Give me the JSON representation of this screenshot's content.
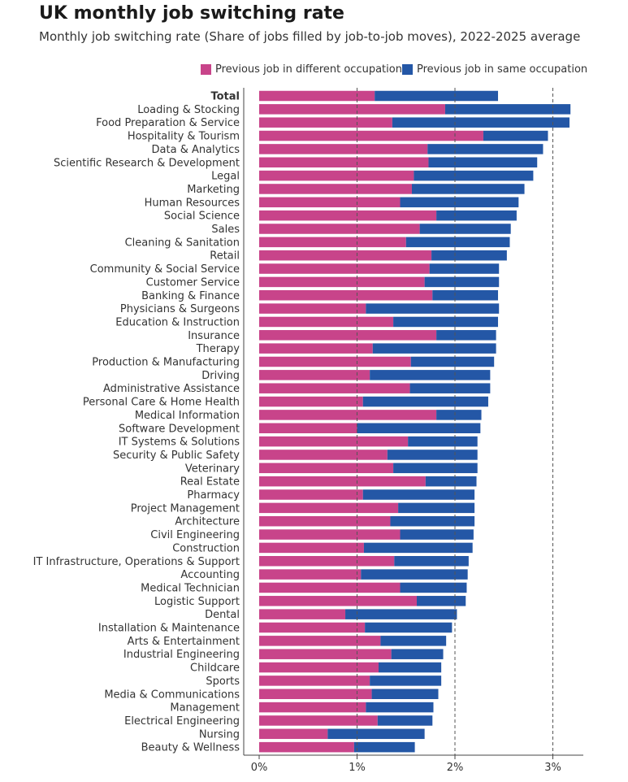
{
  "chart_data": {
    "type": "bar",
    "orientation": "horizontal",
    "stacked": true,
    "title": "UK monthly job switching rate",
    "subtitle": "Monthly job switching rate (Share of jobs filled by job-to-job moves), 2022-2025 average",
    "xlabel": "",
    "ylabel": "",
    "xlim": [
      0,
      3.3
    ],
    "x_ticks": [
      0,
      1,
      2,
      3
    ],
    "x_tick_labels": [
      "0%",
      "1%",
      "2%",
      "3%"
    ],
    "gridlines": "dashed vertical at 1%, 2%, 3%",
    "legend_position": "top-right",
    "colors": {
      "different": "#c8448a",
      "same": "#2457a6"
    },
    "categories": [
      "Total",
      "Loading & Stocking",
      "Food Preparation & Service",
      "Hospitality & Tourism",
      "Data & Analytics",
      "Scientific Research & Development",
      "Legal",
      "Marketing",
      "Human Resources",
      "Social Science",
      "Sales",
      "Cleaning & Sanitation",
      "Retail",
      "Community & Social Service",
      "Customer Service",
      "Banking & Finance",
      "Physicians & Surgeons",
      "Education & Instruction",
      "Insurance",
      "Therapy",
      "Production & Manufacturing",
      "Driving",
      "Administrative Assistance",
      "Personal Care & Home Health",
      "Medical Information",
      "Software Development",
      "IT Systems & Solutions",
      "Security & Public Safety",
      "Veterinary",
      "Real Estate",
      "Pharmacy",
      "Project Management",
      "Architecture",
      "Civil Engineering",
      "Construction",
      "IT Infrastructure, Operations & Support",
      "Accounting",
      "Medical Technician",
      "Logistic Support",
      "Dental",
      "Installation & Maintenance",
      "Arts & Entertainment",
      "Industrial Engineering",
      "Childcare",
      "Sports",
      "Media & Communications",
      "Management",
      "Electrical Engineering",
      "Nursing",
      "Beauty & Wellness"
    ],
    "series": [
      {
        "name": "Previous job in different occupation",
        "values": [
          1.18,
          1.9,
          1.36,
          2.29,
          1.72,
          1.73,
          1.58,
          1.56,
          1.44,
          1.81,
          1.64,
          1.5,
          1.76,
          1.74,
          1.69,
          1.77,
          1.09,
          1.37,
          1.81,
          1.16,
          1.55,
          1.13,
          1.54,
          1.06,
          1.81,
          1.0,
          1.52,
          1.31,
          1.37,
          1.7,
          1.06,
          1.42,
          1.34,
          1.44,
          1.07,
          1.38,
          1.04,
          1.44,
          1.61,
          0.88,
          1.08,
          1.24,
          1.35,
          1.22,
          1.13,
          1.15,
          1.09,
          1.21,
          0.7,
          0.97
        ]
      },
      {
        "name": "Previous job in same occupation",
        "values": [
          1.26,
          1.28,
          1.81,
          0.66,
          1.18,
          1.11,
          1.22,
          1.15,
          1.21,
          0.82,
          0.93,
          1.06,
          0.77,
          0.71,
          0.76,
          0.67,
          1.36,
          1.07,
          0.61,
          1.26,
          0.85,
          1.23,
          0.82,
          1.28,
          0.46,
          1.26,
          0.71,
          0.92,
          0.86,
          0.52,
          1.14,
          0.78,
          0.86,
          0.75,
          1.11,
          0.76,
          1.09,
          0.68,
          0.5,
          1.14,
          0.89,
          0.67,
          0.53,
          0.64,
          0.73,
          0.68,
          0.69,
          0.56,
          0.99,
          0.62
        ]
      }
    ]
  }
}
